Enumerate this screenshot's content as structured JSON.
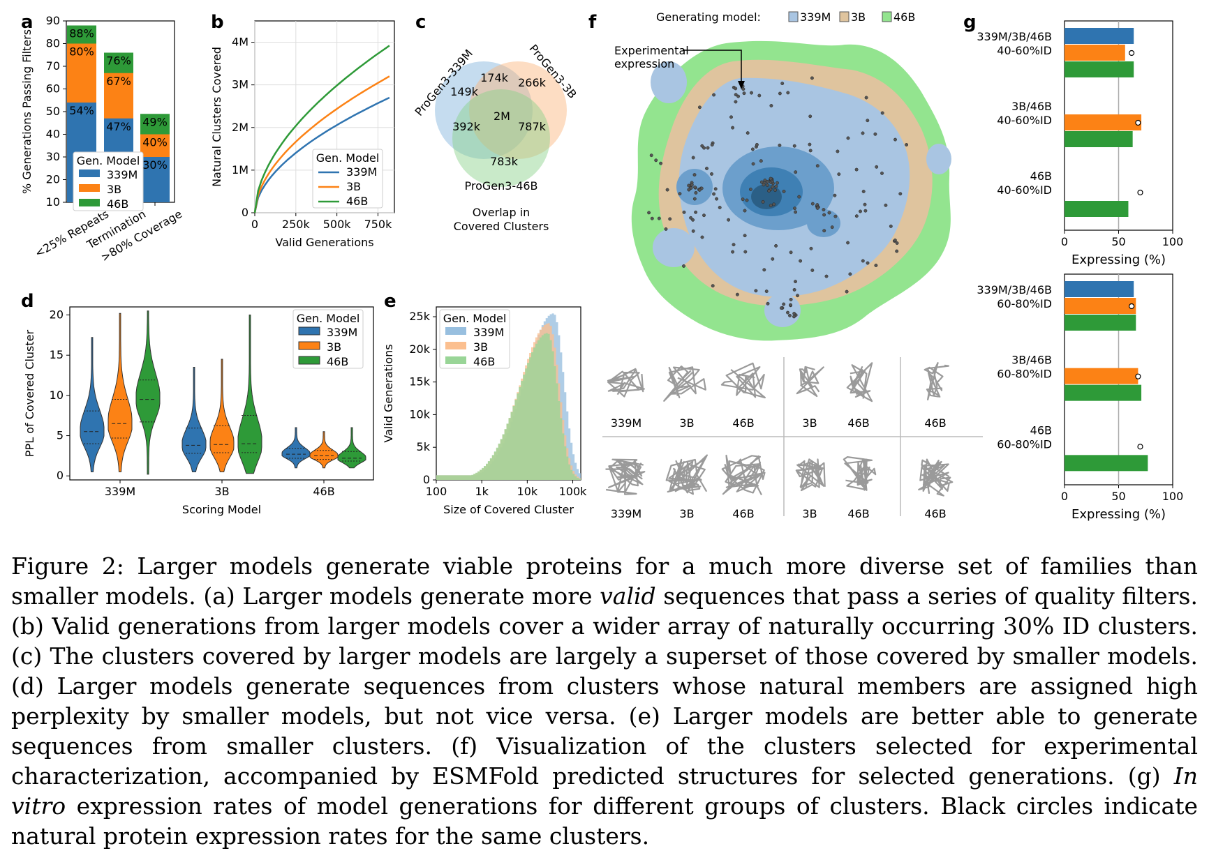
{
  "colors": {
    "c339": "#2f74b0",
    "c3b": "#fc8215",
    "c46": "#2e9a38",
    "c339_light": "#98bfdf",
    "c3b_light": "#fbbf8f",
    "c46_light": "#99d597",
    "embed_green": "#93e48f",
    "embed_tan": "#dfc49e",
    "embed_blue_light": "#a9c5e2",
    "embed_blue_dark": "#2b6f9f"
  },
  "panels": {
    "a": "a",
    "b": "b",
    "c": "c",
    "d": "d",
    "e": "e",
    "f": "f",
    "g": "g"
  },
  "chart_data": [
    {
      "panel": "a",
      "type": "bar",
      "stacked_overlay": true,
      "categories": [
        "<25% Repeats",
        "Termination",
        ">80% Coverage"
      ],
      "series": [
        {
          "name": "339M",
          "values": [
            54,
            47,
            30
          ],
          "labels": [
            "54%",
            "47%",
            "30%"
          ]
        },
        {
          "name": "3B",
          "values": [
            80,
            67,
            40
          ],
          "labels": [
            "80%",
            "67%",
            "40%"
          ]
        },
        {
          "name": "46B",
          "values": [
            88,
            76,
            49
          ],
          "labels": [
            "88%",
            "76%",
            "49%"
          ]
        }
      ],
      "ylabel": "% Generations Passing Filters",
      "ylim": [
        10,
        90
      ],
      "yticks": [
        "10",
        "20",
        "30",
        "40",
        "50",
        "60",
        "70",
        "80",
        "90"
      ],
      "legend_title": "Gen. Model",
      "legend_position": "center"
    },
    {
      "panel": "b",
      "type": "line",
      "x_max": 850000,
      "series": [
        {
          "name": "339M",
          "end_value": 2700000
        },
        {
          "name": "3B",
          "end_value": 3200000
        },
        {
          "name": "46B",
          "end_value": 3920000
        }
      ],
      "xlabel": "Valid Generations",
      "ylabel": "Natural Clusters Covered",
      "xticks": [
        "0",
        "250k",
        "500k",
        "750k"
      ],
      "yticks": [
        "0",
        "1M",
        "2M",
        "3M",
        "4M"
      ],
      "ylim": [
        0,
        4000000
      ],
      "legend_title": "Gen. Model",
      "legend_position": "lower-right"
    },
    {
      "panel": "c",
      "type": "venn",
      "sets": [
        "ProGen3-339M",
        "ProGen3-3B",
        "ProGen3-46B"
      ],
      "regions": {
        "only_339M": "149k",
        "only_3B": "266k",
        "only_46B": "783k",
        "339M_3B": "174k",
        "339M_46B": "392k",
        "3B_46B": "787k",
        "all": "2M"
      },
      "title_lines": [
        "Overlap in",
        "Covered Clusters"
      ]
    },
    {
      "panel": "d",
      "type": "violin",
      "categories": [
        "339M",
        "3B",
        "46B"
      ],
      "series": [
        {
          "name": "339M"
        },
        {
          "name": "3B"
        },
        {
          "name": "46B"
        }
      ],
      "medians": [
        [
          5.5,
          6.5,
          9.5
        ],
        [
          3.8,
          3.9,
          4.0
        ],
        [
          2.7,
          2.5,
          2.2
        ]
      ],
      "ranges": [
        [
          [
            0.5,
            17.2
          ],
          [
            0.5,
            20.2
          ],
          [
            0.2,
            20.5
          ]
        ],
        [
          [
            0.5,
            13.5
          ],
          [
            0.5,
            14.5
          ],
          [
            0.3,
            20.0
          ]
        ],
        [
          [
            1.0,
            6.0
          ],
          [
            1.0,
            5.5
          ],
          [
            1.0,
            6.0
          ]
        ]
      ],
      "xlabel": "Scoring Model",
      "ylabel": "PPL of Covered Cluster",
      "yticks": [
        "0",
        "5",
        "10",
        "15",
        "20"
      ],
      "ylim": [
        -0.5,
        21
      ],
      "legend_title": "Gen. Model",
      "legend_position": "top-right"
    },
    {
      "panel": "e",
      "type": "histogram",
      "xscale": "log",
      "series": [
        {
          "name": "339M",
          "peak_x": 38000,
          "peak_y": 25500
        },
        {
          "name": "3B",
          "peak_x": 30000,
          "peak_y": 24000
        },
        {
          "name": "46B",
          "peak_x": 28000,
          "peak_y": 22500
        }
      ],
      "xlabel": "Size of Covered Cluster",
      "ylabel": "Valid Generations",
      "xticks": [
        "100",
        "1k",
        "10k",
        "100k"
      ],
      "yticks": [
        "0",
        "5k",
        "10k",
        "15k",
        "20k",
        "25k"
      ],
      "ylim": [
        0,
        26500
      ],
      "legend_title": "Gen. Model",
      "legend_position": "top-left"
    },
    {
      "panel": "g_top",
      "type": "bar",
      "orientation": "horizontal",
      "groups": [
        {
          "label_lines": [
            "339M/3B/46B",
            "40-60%ID"
          ],
          "bars": [
            {
              "name": "339M",
              "value": 64
            },
            {
              "name": "3B",
              "value": 56
            },
            {
              "name": "46B",
              "value": 64
            }
          ],
          "natural": 62
        },
        {
          "label_lines": [
            "3B/46B",
            "40-60%ID"
          ],
          "bars": [
            {
              "name": "3B",
              "value": 71
            },
            {
              "name": "46B",
              "value": 63
            }
          ],
          "natural": 68
        },
        {
          "label_lines": [
            "46B",
            "40-60%ID"
          ],
          "bars": [
            {
              "name": "46B",
              "value": 59
            }
          ],
          "natural": 70
        }
      ],
      "xlabel": "Expressing (%)",
      "xticks": [
        "0",
        "50",
        "100"
      ],
      "xlim": [
        0,
        100
      ],
      "refline": 50
    },
    {
      "panel": "g_bottom",
      "type": "bar",
      "orientation": "horizontal",
      "groups": [
        {
          "label_lines": [
            "339M/3B/46B",
            "60-80%ID"
          ],
          "bars": [
            {
              "name": "339M",
              "value": 64
            },
            {
              "name": "3B",
              "value": 66
            },
            {
              "name": "46B",
              "value": 66
            }
          ],
          "natural": 62
        },
        {
          "label_lines": [
            "3B/46B",
            "60-80%ID"
          ],
          "bars": [
            {
              "name": "3B",
              "value": 68
            },
            {
              "name": "46B",
              "value": 71
            }
          ],
          "natural": 68
        },
        {
          "label_lines": [
            "46B",
            "60-80%ID"
          ],
          "bars": [
            {
              "name": "46B",
              "value": 77
            }
          ],
          "natural": 70
        }
      ],
      "xlabel": "Expressing (%)",
      "xticks": [
        "0",
        "50",
        "100"
      ],
      "xlim": [
        0,
        100
      ],
      "refline": 50
    }
  ],
  "panel_f": {
    "legend_title": "Generating model:",
    "legend_items": [
      "339M",
      "3B",
      "46B"
    ],
    "annotation_lines": [
      "Experimental",
      "expression"
    ],
    "structure_labels_top": [
      "339M",
      "3B",
      "46B",
      "3B",
      "46B",
      "46B"
    ],
    "structure_labels_bottom": [
      "339M",
      "3B",
      "46B",
      "3B",
      "46B",
      "46B"
    ]
  },
  "caption": {
    "line1": "Figure 2: Larger models generate viable proteins for a much more diverse set of families than smaller models.",
    "a_pre": "(a) Larger models generate more ",
    "a_em": "valid",
    "a_post": " sequences that pass a series of quality filters. (b) Valid generations from larger models cover a wider array of naturally occurring 30% ID clusters. (c) The clusters covered by larger models are largely a superset of those covered by smaller models. (d) Larger models generate sequences from clusters whose natural members are assigned high perplexity by smaller models, but not vice versa. (e) Larger models are better able to generate sequences from smaller clusters. (f) Visualization of the clusters selected for experimental characterization, accompanied by ESMFold predicted structures for selected generations. (g) ",
    "g_em": "In vitro",
    "g_post": " expression rates of model generations for different groups of clusters. Black circles indicate natural protein expression rates for the same clusters."
  }
}
